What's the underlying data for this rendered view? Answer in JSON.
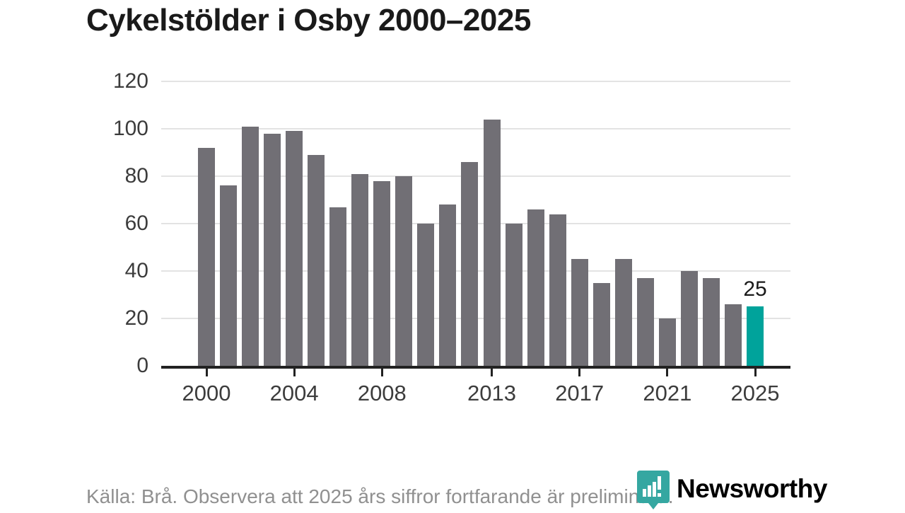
{
  "title": "Cykelstölder i Osby 2000–2025",
  "footer": {
    "source_note": "Källa: Brå. Observera att 2025 års siffror fortfarande är preliminära."
  },
  "branding": {
    "logo_text": "Newsworthy",
    "logo_icon": "newsworthy-chart-pin-icon"
  },
  "colors": {
    "bar": "#716F75",
    "highlight": "#00A39B",
    "gridline": "#E3E3E3",
    "axis": "#222222",
    "title_text": "#1A1A1A",
    "axis_label": "#3C3C3C",
    "footer_text": "#909090",
    "logo_teal": "#35A7A1"
  },
  "chart_data": {
    "type": "bar",
    "title": "Cykelstölder i Osby 2000–2025",
    "x": [
      2000,
      2001,
      2002,
      2003,
      2004,
      2005,
      2006,
      2007,
      2008,
      2009,
      2010,
      2011,
      2012,
      2013,
      2014,
      2015,
      2016,
      2017,
      2018,
      2019,
      2020,
      2021,
      2022,
      2023,
      2024,
      2025
    ],
    "values": [
      92,
      76,
      101,
      98,
      99,
      89,
      67,
      81,
      78,
      80,
      60,
      68,
      86,
      104,
      60,
      66,
      64,
      45,
      35,
      45,
      37,
      20,
      40,
      37,
      26,
      25
    ],
    "highlight_year": 2025,
    "highlight_value_label": "25",
    "x_tick_labels": [
      "2000",
      "2004",
      "2008",
      "2013",
      "2017",
      "2021",
      "2025"
    ],
    "y_ticks": [
      0,
      20,
      40,
      60,
      80,
      100,
      120
    ],
    "ylim": [
      0,
      120
    ],
    "xlabel": "",
    "ylabel": "",
    "grid": "horizontal-only",
    "legend": "none"
  }
}
